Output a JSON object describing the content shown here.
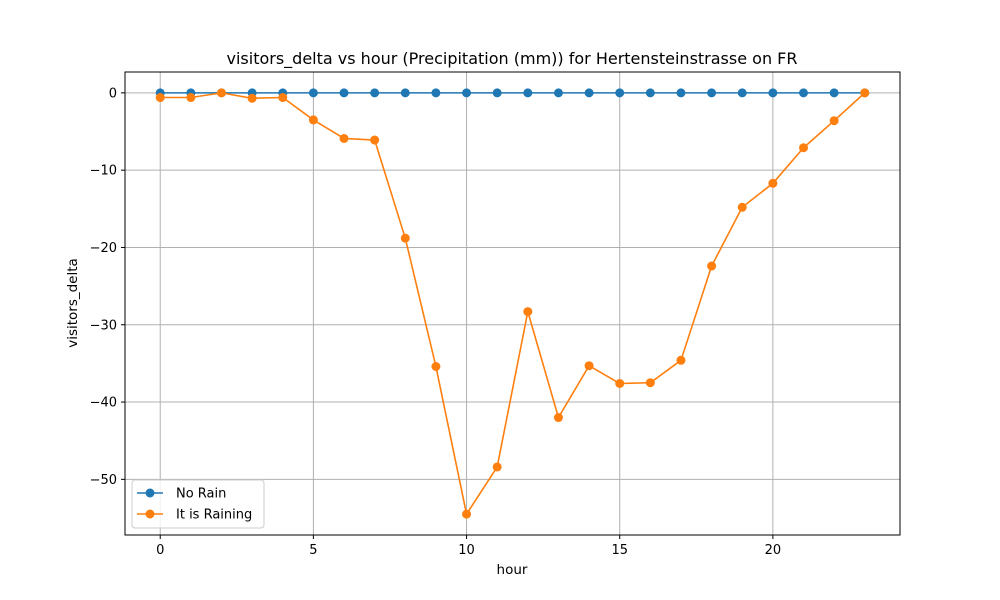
{
  "chart_data": {
    "type": "line",
    "title": "visitors_delta vs hour (Precipitation (mm)) for Hertensteinstrasse on FR",
    "xlabel": "hour",
    "ylabel": "visitors_delta",
    "x": [
      0,
      1,
      2,
      3,
      4,
      5,
      6,
      7,
      8,
      9,
      10,
      11,
      12,
      13,
      14,
      15,
      16,
      17,
      18,
      19,
      20,
      21,
      22,
      23
    ],
    "xlim": [
      -1.15,
      24.15
    ],
    "ylim": [
      -57.2,
      2.7
    ],
    "xticks": [
      0,
      5,
      10,
      15,
      20
    ],
    "yticks": [
      0,
      -10,
      -20,
      -30,
      -40,
      -50
    ],
    "grid": true,
    "legend_position": "lower-left",
    "series": [
      {
        "name": "No Rain",
        "color": "#1f77b4",
        "values": [
          0,
          0,
          0,
          0,
          0,
          0,
          0,
          0,
          0,
          0,
          0,
          0,
          0,
          0,
          0,
          0,
          0,
          0,
          0,
          0,
          0,
          0,
          0,
          0
        ]
      },
      {
        "name": "It is Raining",
        "color": "#ff7f0e",
        "values": [
          -0.6,
          -0.6,
          0,
          -0.7,
          -0.6,
          -3.5,
          -5.9,
          -6.1,
          -18.8,
          -35.4,
          -54.5,
          -48.4,
          -28.3,
          -42.0,
          -35.3,
          -37.6,
          -37.5,
          -34.6,
          -22.4,
          -14.8,
          -11.7,
          -7.1,
          -3.6,
          0
        ]
      }
    ]
  }
}
